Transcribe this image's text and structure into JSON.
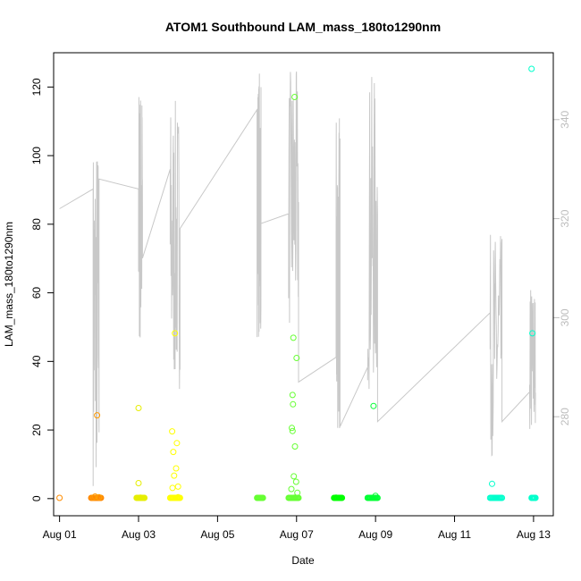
{
  "chart_data": {
    "type": "scatter",
    "title": "ATOM1 Southbound LAM_mass_180to1290nm",
    "xlabel": "Date",
    "ylabel": "LAM_mass_180to1290nm",
    "xlim": [
      -0.15,
      12.5
    ],
    "ylim": [
      -5,
      130
    ],
    "x_ticks": [
      {
        "value": 0,
        "label": "Aug 01"
      },
      {
        "value": 2,
        "label": "Aug 03"
      },
      {
        "value": 4,
        "label": "Aug 05"
      },
      {
        "value": 6,
        "label": "Aug 07"
      },
      {
        "value": 8,
        "label": "Aug 09"
      },
      {
        "value": 10,
        "label": "Aug 11"
      },
      {
        "value": 12,
        "label": "Aug 13"
      }
    ],
    "y_ticks": [
      0,
      20,
      40,
      60,
      80,
      100,
      120
    ],
    "y2_ticks": [
      280,
      300,
      320,
      340
    ],
    "y2_lim": [
      260,
      353.5
    ],
    "colors": {
      "grey_line": "#c8c8c8",
      "right_axis": "#bdbdbd",
      "points_palette": [
        "#ff8c00",
        "#ffaa00",
        "#e6ee00",
        "#ffff00",
        "#66ff33",
        "#00ff00",
        "#00ff88",
        "#00ffcc"
      ]
    },
    "series": [
      {
        "type": "scatter",
        "axis": "left",
        "points": [
          {
            "x": 0.0,
            "y": 0.2,
            "c": "#ff8c00"
          },
          {
            "x": 0.85,
            "y": 0.3,
            "c": "#ff9900"
          },
          {
            "x": 0.9,
            "y": 0.6,
            "c": "#ff9900"
          },
          {
            "x": 0.95,
            "y": 24.3,
            "c": "#ff9900"
          },
          {
            "x": 1.0,
            "y": 0.4,
            "c": "#ffa500"
          },
          {
            "x": 2.0,
            "y": 4.5,
            "c": "#e6ee00"
          },
          {
            "x": 2.0,
            "y": 26.4,
            "c": "#e6ee00"
          },
          {
            "x": 2.05,
            "y": 0.3,
            "c": "#e6ee00"
          },
          {
            "x": 2.85,
            "y": 19.6,
            "c": "#ffff00"
          },
          {
            "x": 2.88,
            "y": 13.6,
            "c": "#ffff00"
          },
          {
            "x": 2.9,
            "y": 6.7,
            "c": "#ffff00"
          },
          {
            "x": 2.92,
            "y": 48.2,
            "c": "#ffff00"
          },
          {
            "x": 2.95,
            "y": 8.8,
            "c": "#ffff00"
          },
          {
            "x": 2.97,
            "y": 16.2,
            "c": "#ffff00"
          },
          {
            "x": 3.0,
            "y": 3.5,
            "c": "#ffff00"
          },
          {
            "x": 2.86,
            "y": 3.1,
            "c": "#ffff00"
          },
          {
            "x": 3.0,
            "y": 0.4,
            "c": "#ffff00"
          },
          {
            "x": 5.05,
            "y": 0.2,
            "c": "#66ff33"
          },
          {
            "x": 5.95,
            "y": 117.1,
            "c": "#66ff33"
          },
          {
            "x": 5.92,
            "y": 46.9,
            "c": "#66ff33"
          },
          {
            "x": 6.0,
            "y": 41.0,
            "c": "#66ff33"
          },
          {
            "x": 5.9,
            "y": 30.2,
            "c": "#66ff33"
          },
          {
            "x": 5.91,
            "y": 27.5,
            "c": "#66ff33"
          },
          {
            "x": 5.88,
            "y": 20.6,
            "c": "#66ff33"
          },
          {
            "x": 5.9,
            "y": 19.7,
            "c": "#66ff33"
          },
          {
            "x": 5.96,
            "y": 15.2,
            "c": "#66ff33"
          },
          {
            "x": 5.93,
            "y": 6.5,
            "c": "#66ff33"
          },
          {
            "x": 5.99,
            "y": 4.9,
            "c": "#66ff33"
          },
          {
            "x": 5.87,
            "y": 2.8,
            "c": "#66ff33"
          },
          {
            "x": 6.02,
            "y": 1.7,
            "c": "#66ff33"
          },
          {
            "x": 5.95,
            "y": 0.3,
            "c": "#66ff33"
          },
          {
            "x": 7.0,
            "y": 0.3,
            "c": "#00ff00"
          },
          {
            "x": 7.95,
            "y": 27.0,
            "c": "#00ff33"
          },
          {
            "x": 8.0,
            "y": 0.8,
            "c": "#00ff33"
          },
          {
            "x": 10.95,
            "y": 4.3,
            "c": "#00ffcc"
          },
          {
            "x": 11.95,
            "y": 125.3,
            "c": "#00ffcc"
          },
          {
            "x": 11.97,
            "y": 48.2,
            "c": "#00ffcc"
          },
          {
            "x": 12.0,
            "y": 0.2,
            "c": "#00ffcc"
          }
        ],
        "clusters": [
          {
            "x0": 0.8,
            "x1": 1.05,
            "c": "#ff8800"
          },
          {
            "x0": 1.95,
            "x1": 2.15,
            "c": "#e6ee00"
          },
          {
            "x0": 2.8,
            "x1": 3.05,
            "c": "#ffff00"
          },
          {
            "x0": 5.0,
            "x1": 5.15,
            "c": "#66ff33"
          },
          {
            "x0": 5.8,
            "x1": 6.05,
            "c": "#66ff33"
          },
          {
            "x0": 6.95,
            "x1": 7.15,
            "c": "#00ff00"
          },
          {
            "x0": 7.8,
            "x1": 8.05,
            "c": "#00ff33"
          },
          {
            "x0": 10.9,
            "x1": 11.2,
            "c": "#00ffcc"
          },
          {
            "x0": 11.95,
            "x1": 12.05,
            "c": "#00ffcc"
          }
        ]
      },
      {
        "type": "line",
        "axis": "right",
        "segments": [
          {
            "x0": 0.0,
            "x1": 0.85,
            "y0": 322,
            "y1": 326,
            "dense": false
          },
          {
            "x0": 0.85,
            "x1": 1.0,
            "y0": 266,
            "y1": 337,
            "dense": true
          },
          {
            "x0": 1.0,
            "x1": 2.0,
            "y0": 328,
            "y1": 326,
            "dense": false
          },
          {
            "x0": 2.0,
            "x1": 2.1,
            "y0": 293,
            "y1": 348,
            "dense": true
          },
          {
            "x0": 2.1,
            "x1": 2.8,
            "y0": 312,
            "y1": 330,
            "dense": false
          },
          {
            "x0": 2.8,
            "x1": 3.05,
            "y0": 285,
            "y1": 344,
            "dense": true
          },
          {
            "x0": 3.05,
            "x1": 5.0,
            "y0": 318,
            "y1": 342,
            "dense": false
          },
          {
            "x0": 5.0,
            "x1": 5.1,
            "y0": 296,
            "y1": 351,
            "dense": true
          },
          {
            "x0": 5.1,
            "x1": 5.8,
            "y0": 319,
            "y1": 321,
            "dense": false
          },
          {
            "x0": 5.8,
            "x1": 6.05,
            "y0": 297,
            "y1": 350,
            "dense": true
          },
          {
            "x0": 6.05,
            "x1": 7.0,
            "y0": 287,
            "y1": 292,
            "dense": false
          },
          {
            "x0": 7.0,
            "x1": 7.1,
            "y0": 276,
            "y1": 343,
            "dense": true
          },
          {
            "x0": 7.1,
            "x1": 7.8,
            "y0": 278,
            "y1": 290,
            "dense": false
          },
          {
            "x0": 7.8,
            "x1": 8.05,
            "y0": 285,
            "y1": 349,
            "dense": true
          },
          {
            "x0": 8.05,
            "x1": 10.9,
            "y0": 279,
            "y1": 301,
            "dense": false
          },
          {
            "x0": 10.9,
            "x1": 11.2,
            "y0": 272,
            "y1": 317,
            "dense": true
          },
          {
            "x0": 11.2,
            "x1": 11.9,
            "y0": 279,
            "y1": 285,
            "dense": false
          },
          {
            "x0": 11.9,
            "x1": 12.05,
            "y0": 275,
            "y1": 307,
            "dense": true
          }
        ]
      }
    ]
  }
}
